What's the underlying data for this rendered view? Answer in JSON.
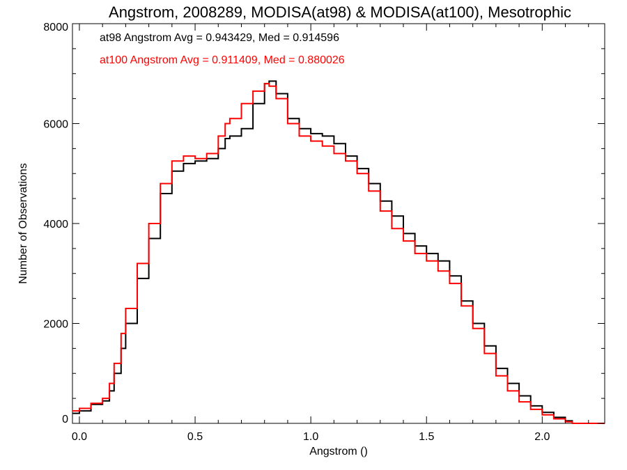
{
  "chart_data": {
    "type": "line",
    "title": "Angstrom, 2008289, MODISA(at98) & MODISA(at100), Mesotrophic",
    "xlabel": "Angstrom ()",
    "ylabel": "Number of Observations",
    "xlim": [
      -0.03,
      2.27
    ],
    "ylim": [
      0,
      8000
    ],
    "x_ticks": [
      0.0,
      0.5,
      1.0,
      1.5,
      2.0
    ],
    "x_tick_labels": [
      "0.0",
      "0.5",
      "1.0",
      "1.5",
      "2.0"
    ],
    "y_ticks": [
      0,
      2000,
      4000,
      6000,
      8000
    ],
    "y_tick_labels": [
      "0",
      "2000",
      "4000",
      "6000",
      "8000"
    ],
    "grid": false,
    "style": "step",
    "annotations": [
      {
        "text": "at98 Angstrom Avg = 0.943429, Med = 0.914596",
        "color": "#000000"
      },
      {
        "text": "at100 Angstrom Avg = 0.911409, Med = 0.880026",
        "color": "#ff0000"
      }
    ],
    "series": [
      {
        "color": "#000000",
        "x": [
          -0.03,
          0.0,
          0.05,
          0.1,
          0.13,
          0.15,
          0.18,
          0.2,
          0.25,
          0.3,
          0.35,
          0.4,
          0.45,
          0.5,
          0.55,
          0.6,
          0.63,
          0.65,
          0.7,
          0.75,
          0.8,
          0.82,
          0.85,
          0.9,
          0.95,
          1.0,
          1.05,
          1.1,
          1.15,
          1.2,
          1.25,
          1.3,
          1.35,
          1.4,
          1.45,
          1.5,
          1.55,
          1.6,
          1.65,
          1.7,
          1.75,
          1.8,
          1.85,
          1.9,
          1.95,
          2.0,
          2.05,
          2.1,
          2.13,
          2.15,
          2.2,
          2.27
        ],
        "values": [
          200,
          250,
          380,
          450,
          650,
          1000,
          1500,
          2000,
          2900,
          3700,
          4600,
          5050,
          5200,
          5250,
          5300,
          5500,
          5700,
          5750,
          5900,
          6400,
          6800,
          6850,
          6600,
          6100,
          5900,
          5800,
          5750,
          5600,
          5350,
          5100,
          4800,
          4450,
          4150,
          3800,
          3550,
          3400,
          3250,
          2950,
          2450,
          2000,
          1550,
          1100,
          800,
          550,
          350,
          220,
          120,
          50,
          0,
          0,
          0,
          0
        ]
      },
      {
        "color": "#ff0000",
        "x": [
          -0.03,
          0.0,
          0.05,
          0.1,
          0.13,
          0.15,
          0.18,
          0.2,
          0.25,
          0.3,
          0.35,
          0.4,
          0.45,
          0.5,
          0.55,
          0.6,
          0.63,
          0.65,
          0.7,
          0.75,
          0.8,
          0.82,
          0.85,
          0.9,
          0.95,
          1.0,
          1.05,
          1.1,
          1.15,
          1.2,
          1.25,
          1.3,
          1.35,
          1.4,
          1.45,
          1.5,
          1.55,
          1.6,
          1.65,
          1.7,
          1.75,
          1.8,
          1.85,
          1.9,
          1.95,
          2.0,
          2.05,
          2.1,
          2.13,
          2.15,
          2.2,
          2.27
        ],
        "values": [
          250,
          300,
          400,
          500,
          800,
          1200,
          1800,
          2300,
          3200,
          4000,
          4800,
          5250,
          5350,
          5300,
          5400,
          5750,
          6000,
          6100,
          6400,
          6650,
          6800,
          6750,
          6500,
          6000,
          5750,
          5650,
          5550,
          5400,
          5250,
          5000,
          4650,
          4250,
          3900,
          3650,
          3400,
          3250,
          3050,
          2800,
          2350,
          1900,
          1400,
          950,
          650,
          430,
          280,
          170,
          90,
          30,
          0,
          0,
          0,
          0
        ]
      }
    ]
  }
}
